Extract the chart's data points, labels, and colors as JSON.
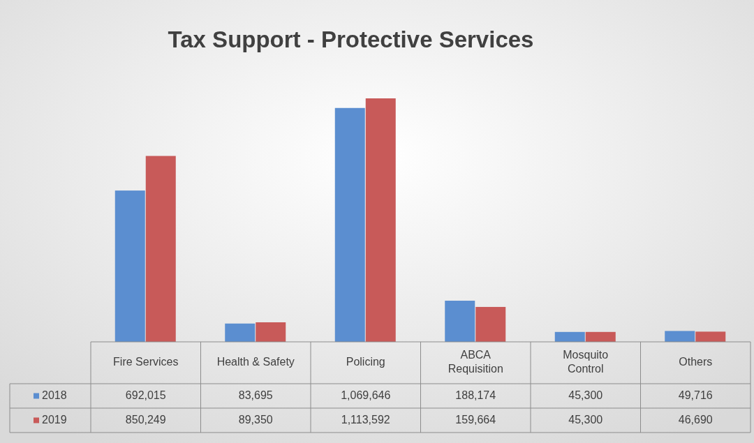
{
  "chart_data": {
    "type": "bar",
    "title": "Tax Support - Protective Services",
    "categories": [
      "Fire Services",
      "Health & Safety",
      "Policing",
      "ABCA Requisition",
      "Mosquito Control",
      "Others"
    ],
    "series": [
      {
        "name": "2018",
        "color": "#5b8ed0",
        "values": [
          692015,
          83695,
          1069646,
          188174,
          45300,
          49716
        ],
        "value_labels": [
          "692,015",
          "83,695",
          "1,069,646",
          "188,174",
          "45,300",
          "49,716"
        ]
      },
      {
        "name": "2019",
        "color": "#c85a59",
        "values": [
          850249,
          89350,
          1113592,
          159664,
          45300,
          46690
        ],
        "value_labels": [
          "850,249",
          "89,350",
          "1,113,592",
          "159,664",
          "45,300",
          "46,690"
        ]
      }
    ],
    "legend": "bottom",
    "grid": false
  }
}
